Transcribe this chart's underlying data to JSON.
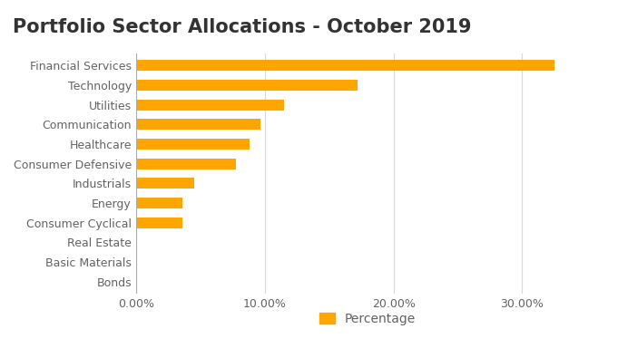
{
  "title": "Portfolio Sector Allocations - October 2019",
  "categories": [
    "Financial Services",
    "Technology",
    "Utilities",
    "Communication",
    "Healthcare",
    "Consumer Defensive",
    "Industrials",
    "Energy",
    "Consumer Cyclical",
    "Real Estate",
    "Basic Materials",
    "Bonds"
  ],
  "values": [
    32.5,
    17.2,
    11.5,
    9.7,
    8.8,
    7.8,
    4.5,
    3.6,
    3.6,
    0.0,
    0.0,
    0.0
  ],
  "bar_color": "#FFA500",
  "background_color": "#ffffff",
  "label_color": "#636363",
  "title_color": "#333333",
  "grid_color": "#d9d9d9",
  "xlim": [
    0,
    36
  ],
  "xticks": [
    0,
    10,
    20,
    30
  ],
  "xtick_labels": [
    "0.00%",
    "10.00%",
    "20.00%",
    "30.00%"
  ],
  "legend_label": "Percentage",
  "title_fontsize": 15,
  "tick_fontsize": 9,
  "label_fontsize": 9,
  "bar_height": 0.55
}
